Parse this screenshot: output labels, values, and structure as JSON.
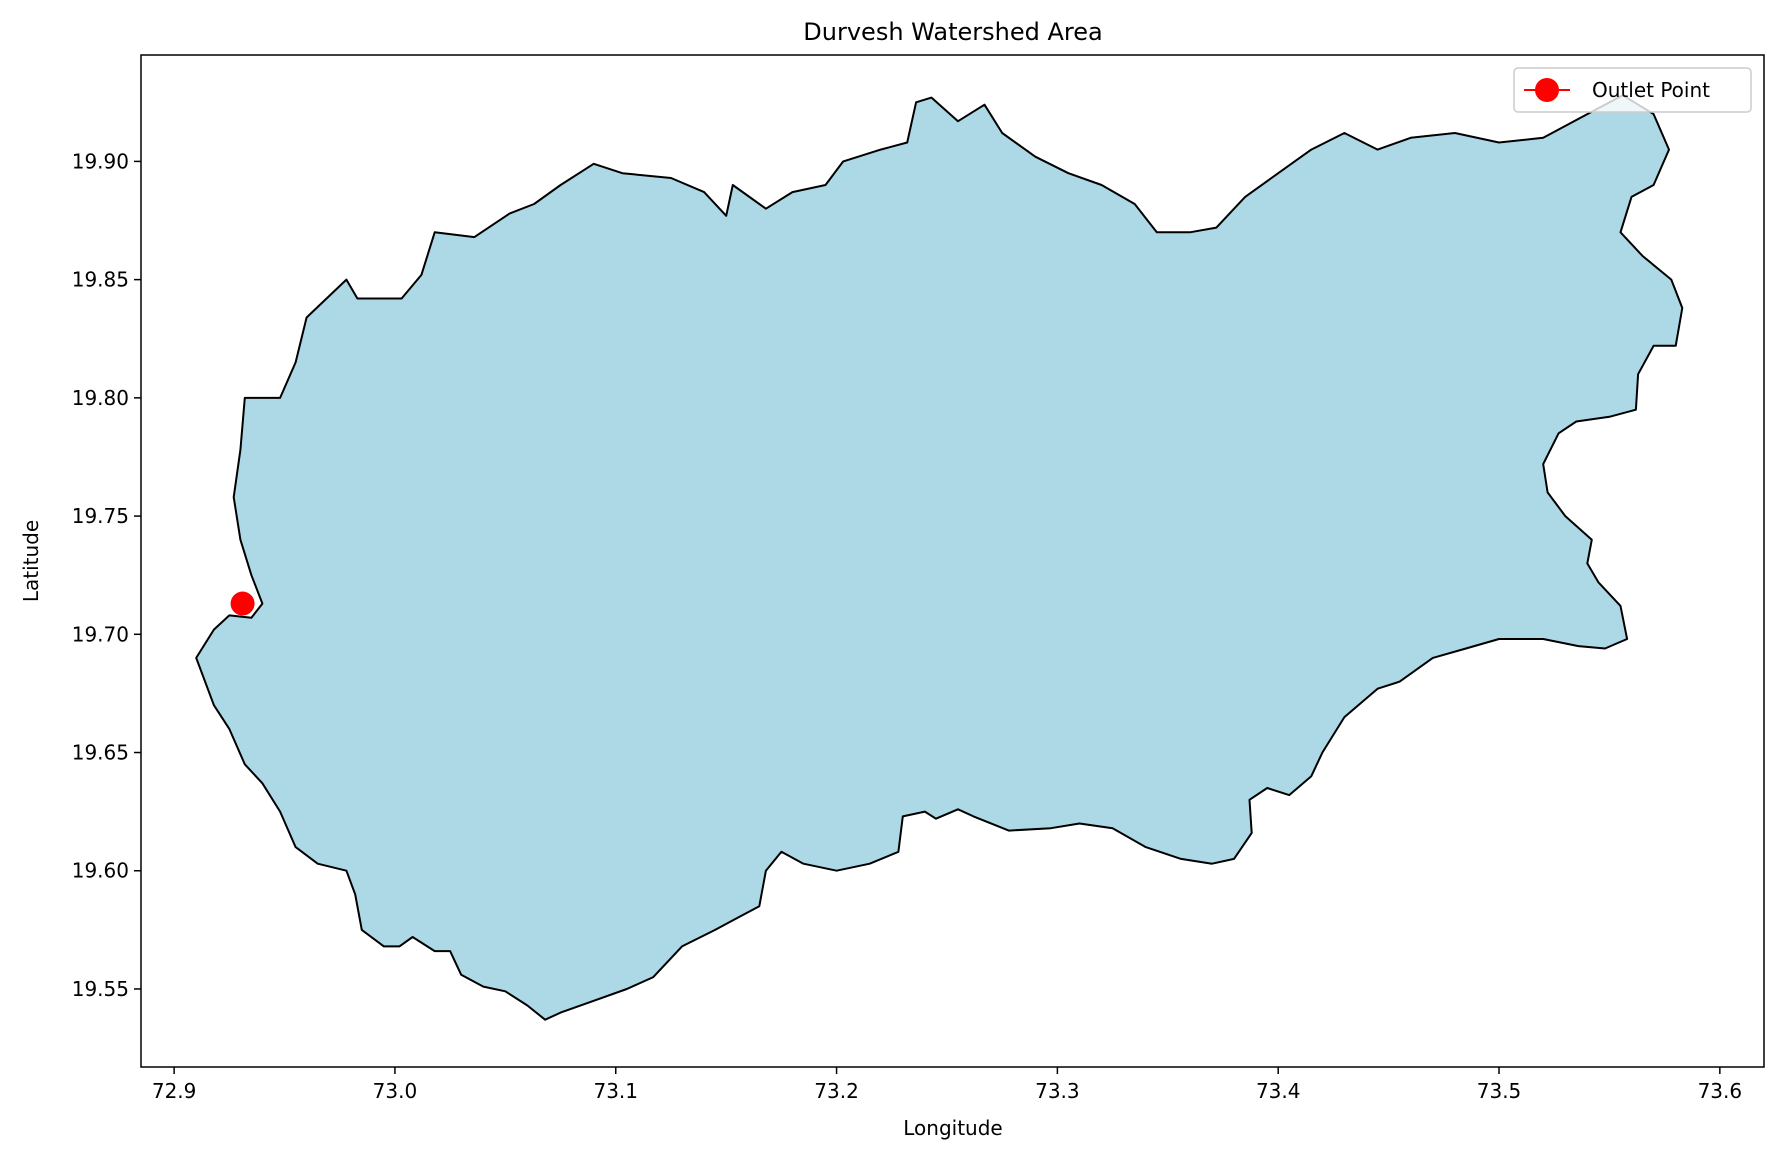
{
  "chart_data": {
    "type": "map",
    "title": "Durvesh Watershed Area",
    "xlabel": "Longitude",
    "ylabel": "Latitude",
    "xlim": [
      72.885,
      73.62
    ],
    "ylim": [
      19.517,
      19.945
    ],
    "xticks": [
      72.9,
      73.0,
      73.1,
      73.2,
      73.3,
      73.4,
      73.5,
      73.6
    ],
    "xtick_labels": [
      "72.9",
      "73.0",
      "73.1",
      "73.2",
      "73.3",
      "73.4",
      "73.5",
      "73.6"
    ],
    "yticks": [
      19.55,
      19.6,
      19.65,
      19.7,
      19.75,
      19.8,
      19.85,
      19.9
    ],
    "ytick_labels": [
      "19.55",
      "19.60",
      "19.65",
      "19.70",
      "19.75",
      "19.80",
      "19.85",
      "19.90"
    ],
    "grid": false,
    "legend": {
      "placement": "top-right",
      "entries": [
        {
          "label": "Outlet Point",
          "color": "#ff0000",
          "marker": "circle"
        }
      ]
    },
    "watershed": {
      "fill_color": "#add8e6",
      "edge_color": "#000000",
      "boundary": [
        [
          72.935,
          19.707
        ],
        [
          72.94,
          19.713
        ],
        [
          72.935,
          19.725
        ],
        [
          72.93,
          19.74
        ],
        [
          72.927,
          19.758
        ],
        [
          72.93,
          19.778
        ],
        [
          72.932,
          19.8
        ],
        [
          72.948,
          19.8
        ],
        [
          72.955,
          19.815
        ],
        [
          72.96,
          19.834
        ],
        [
          72.978,
          19.85
        ],
        [
          72.983,
          19.842
        ],
        [
          73.003,
          19.842
        ],
        [
          73.012,
          19.852
        ],
        [
          73.018,
          19.87
        ],
        [
          73.036,
          19.868
        ],
        [
          73.052,
          19.878
        ],
        [
          73.063,
          19.882
        ],
        [
          73.075,
          19.89
        ],
        [
          73.09,
          19.899
        ],
        [
          73.103,
          19.895
        ],
        [
          73.125,
          19.893
        ],
        [
          73.14,
          19.887
        ],
        [
          73.15,
          19.877
        ],
        [
          73.153,
          19.89
        ],
        [
          73.168,
          19.88
        ],
        [
          73.18,
          19.887
        ],
        [
          73.195,
          19.89
        ],
        [
          73.203,
          19.9
        ],
        [
          73.22,
          19.905
        ],
        [
          73.232,
          19.908
        ],
        [
          73.236,
          19.925
        ],
        [
          73.243,
          19.927
        ],
        [
          73.255,
          19.917
        ],
        [
          73.267,
          19.924
        ],
        [
          73.275,
          19.912
        ],
        [
          73.29,
          19.902
        ],
        [
          73.305,
          19.895
        ],
        [
          73.32,
          19.89
        ],
        [
          73.335,
          19.882
        ],
        [
          73.345,
          19.87
        ],
        [
          73.36,
          19.87
        ],
        [
          73.372,
          19.872
        ],
        [
          73.385,
          19.885
        ],
        [
          73.4,
          19.895
        ],
        [
          73.415,
          19.905
        ],
        [
          73.43,
          19.912
        ],
        [
          73.445,
          19.905
        ],
        [
          73.46,
          19.91
        ],
        [
          73.48,
          19.912
        ],
        [
          73.5,
          19.908
        ],
        [
          73.52,
          19.91
        ],
        [
          73.54,
          19.92
        ],
        [
          73.556,
          19.928
        ],
        [
          73.57,
          19.92
        ],
        [
          73.577,
          19.905
        ],
        [
          73.57,
          19.89
        ],
        [
          73.56,
          19.885
        ],
        [
          73.555,
          19.87
        ],
        [
          73.565,
          19.86
        ],
        [
          73.578,
          19.85
        ],
        [
          73.583,
          19.838
        ],
        [
          73.58,
          19.822
        ],
        [
          73.57,
          19.822
        ],
        [
          73.563,
          19.81
        ],
        [
          73.562,
          19.795
        ],
        [
          73.55,
          19.792
        ],
        [
          73.535,
          19.79
        ],
        [
          73.527,
          19.785
        ],
        [
          73.52,
          19.772
        ],
        [
          73.522,
          19.76
        ],
        [
          73.53,
          19.75
        ],
        [
          73.542,
          19.74
        ],
        [
          73.54,
          19.73
        ],
        [
          73.545,
          19.722
        ],
        [
          73.555,
          19.712
        ],
        [
          73.558,
          19.698
        ],
        [
          73.548,
          19.694
        ],
        [
          73.536,
          19.695
        ],
        [
          73.52,
          19.698
        ],
        [
          73.5,
          19.698
        ],
        [
          73.485,
          19.694
        ],
        [
          73.47,
          19.69
        ],
        [
          73.455,
          19.68
        ],
        [
          73.445,
          19.677
        ],
        [
          73.43,
          19.665
        ],
        [
          73.42,
          19.65
        ],
        [
          73.415,
          19.64
        ],
        [
          73.405,
          19.632
        ],
        [
          73.395,
          19.635
        ],
        [
          73.387,
          19.63
        ],
        [
          73.388,
          19.616
        ],
        [
          73.38,
          19.605
        ],
        [
          73.37,
          19.603
        ],
        [
          73.356,
          19.605
        ],
        [
          73.34,
          19.61
        ],
        [
          73.325,
          19.618
        ],
        [
          73.31,
          19.62
        ],
        [
          73.297,
          19.618
        ],
        [
          73.278,
          19.617
        ],
        [
          73.262,
          19.623
        ],
        [
          73.255,
          19.626
        ],
        [
          73.245,
          19.622
        ],
        [
          73.24,
          19.625
        ],
        [
          73.23,
          19.623
        ],
        [
          73.228,
          19.608
        ],
        [
          73.215,
          19.603
        ],
        [
          73.2,
          19.6
        ],
        [
          73.185,
          19.603
        ],
        [
          73.175,
          19.608
        ],
        [
          73.168,
          19.6
        ],
        [
          73.165,
          19.585
        ],
        [
          73.155,
          19.58
        ],
        [
          73.145,
          19.575
        ],
        [
          73.13,
          19.568
        ],
        [
          73.117,
          19.555
        ],
        [
          73.105,
          19.55
        ],
        [
          73.09,
          19.545
        ],
        [
          73.075,
          19.54
        ],
        [
          73.068,
          19.537
        ],
        [
          73.06,
          19.543
        ],
        [
          73.05,
          19.549
        ],
        [
          73.04,
          19.551
        ],
        [
          73.03,
          19.556
        ],
        [
          73.025,
          19.566
        ],
        [
          73.018,
          19.566
        ],
        [
          73.008,
          19.572
        ],
        [
          73.002,
          19.568
        ],
        [
          72.995,
          19.568
        ],
        [
          72.985,
          19.575
        ],
        [
          72.982,
          19.59
        ],
        [
          72.978,
          19.6
        ],
        [
          72.965,
          19.603
        ],
        [
          72.955,
          19.61
        ],
        [
          72.948,
          19.625
        ],
        [
          72.94,
          19.637
        ],
        [
          72.932,
          19.645
        ],
        [
          72.925,
          19.66
        ],
        [
          72.918,
          19.67
        ],
        [
          72.91,
          19.69
        ],
        [
          72.918,
          19.702
        ],
        [
          72.925,
          19.708
        ]
      ]
    },
    "outlet_point": {
      "label": "Outlet Point",
      "x": 72.931,
      "y": 19.713,
      "color": "#ff0000"
    }
  }
}
